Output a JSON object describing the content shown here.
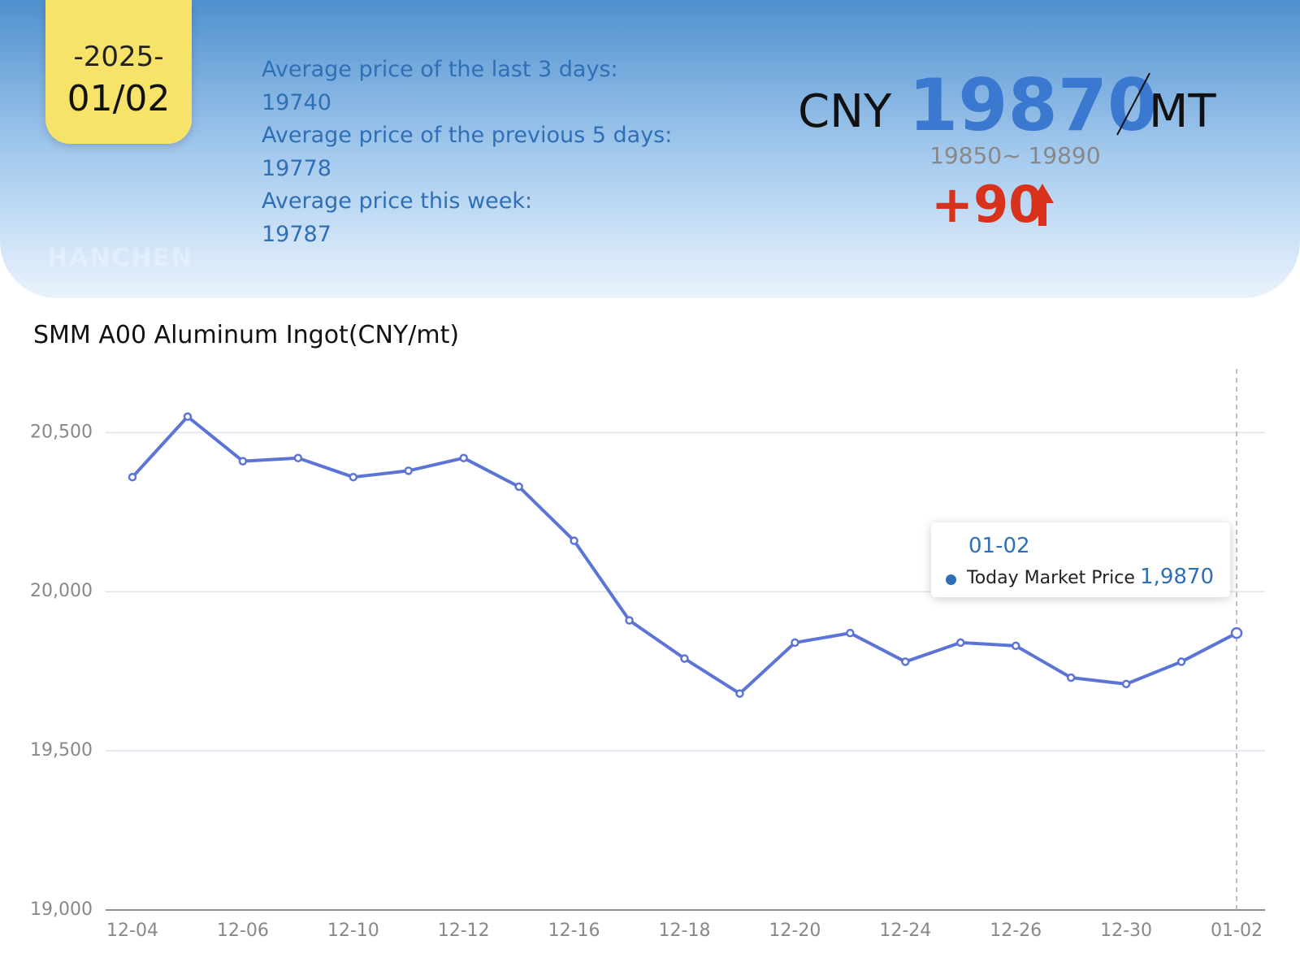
{
  "header": {
    "year": "-2025-",
    "date": "01/02",
    "logo": "HANCHEN",
    "stats": [
      {
        "label": "Average price of the last 3 days:",
        "value": "19740"
      },
      {
        "label": "Average price of the previous 5 days:",
        "value": "19778"
      },
      {
        "label": "Average price this week:",
        "value": "19787"
      }
    ],
    "currency": "CNY",
    "price": "19870",
    "unit": "MT",
    "range": "19850~ 19890",
    "change": "+90"
  },
  "chart_data": {
    "type": "line",
    "title": "SMM A00 Aluminum Ingot(CNY/mt)",
    "categories": [
      "12-04",
      null,
      "12-06",
      null,
      "12-10",
      null,
      "12-12",
      null,
      "12-16",
      null,
      "12-18",
      null,
      "12-20",
      null,
      "12-24",
      null,
      "12-26",
      null,
      "12-30",
      null,
      "01-02"
    ],
    "series": [
      {
        "name": "Today Market Price",
        "color": "#5b74d6",
        "values": [
          20360,
          20550,
          20410,
          20420,
          20360,
          20380,
          20420,
          20330,
          20160,
          19910,
          19790,
          19680,
          19840,
          19870,
          19780,
          19840,
          19830,
          19730,
          19710,
          19780,
          19870
        ],
        "value_labels": [
          null,
          null,
          null,
          null,
          null,
          null,
          null,
          null,
          null,
          null,
          null,
          null,
          null,
          null,
          null,
          null,
          null,
          null,
          null,
          null,
          "1,9870"
        ]
      }
    ],
    "ylim": [
      19000,
      20700
    ],
    "yticks": [
      {
        "value": 19000,
        "label": "19,000"
      },
      {
        "value": 19500,
        "label": "19,500"
      },
      {
        "value": 20000,
        "label": "20,000"
      },
      {
        "value": 20500,
        "label": "20,500"
      }
    ],
    "grid": true
  }
}
